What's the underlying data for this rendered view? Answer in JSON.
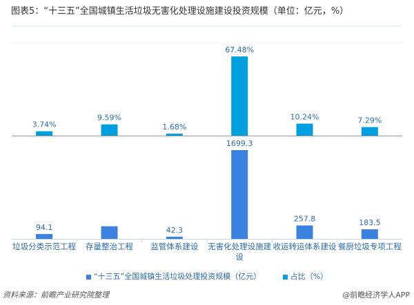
{
  "title": "图表5：“十三五”全国城镇生活垃圾无害化处理设施建设投资规模（单位：亿元，%）",
  "source": "资料来源：前瞻产业研究院整理",
  "brand": "@前瞻经济学人APP",
  "chart_data": [
    {
      "type": "bar",
      "categories": [
        "垃圾分类示范工程",
        "存量整治工程",
        "监管体系建设",
        "无害化处理设施建设",
        "收运转运体系建设",
        "餐厨垃圾专项工程"
      ],
      "series": [
        {
          "name": "占比（%）",
          "values": [
            3.74,
            9.59,
            1.68,
            67.48,
            10.24,
            7.29
          ],
          "labels": [
            "3.74%",
            "9.59%",
            "1.68%",
            "67.48%",
            "10.24%",
            "7.29%"
          ],
          "color": "#00a0e0"
        }
      ],
      "ylim": [
        0,
        70
      ]
    },
    {
      "type": "bar",
      "categories": [
        "垃圾分类示范工程",
        "存量整治工程",
        "监管体系建设",
        "无害化处理设施建设",
        "收运转运体系建设",
        "餐厨垃圾专项工程"
      ],
      "series": [
        {
          "name": "“十三五”全国城镇生活垃圾处理投资规模（亿元）",
          "values": [
            94.1,
            241.5,
            42.3,
            1699.3,
            257.8,
            183.5
          ],
          "labels": [
            "94.1",
            "",
            "42.3",
            "1699.3",
            "257.8",
            "183.5"
          ],
          "color": "#3b82e0"
        }
      ],
      "ylim": [
        0,
        1750
      ]
    }
  ]
}
